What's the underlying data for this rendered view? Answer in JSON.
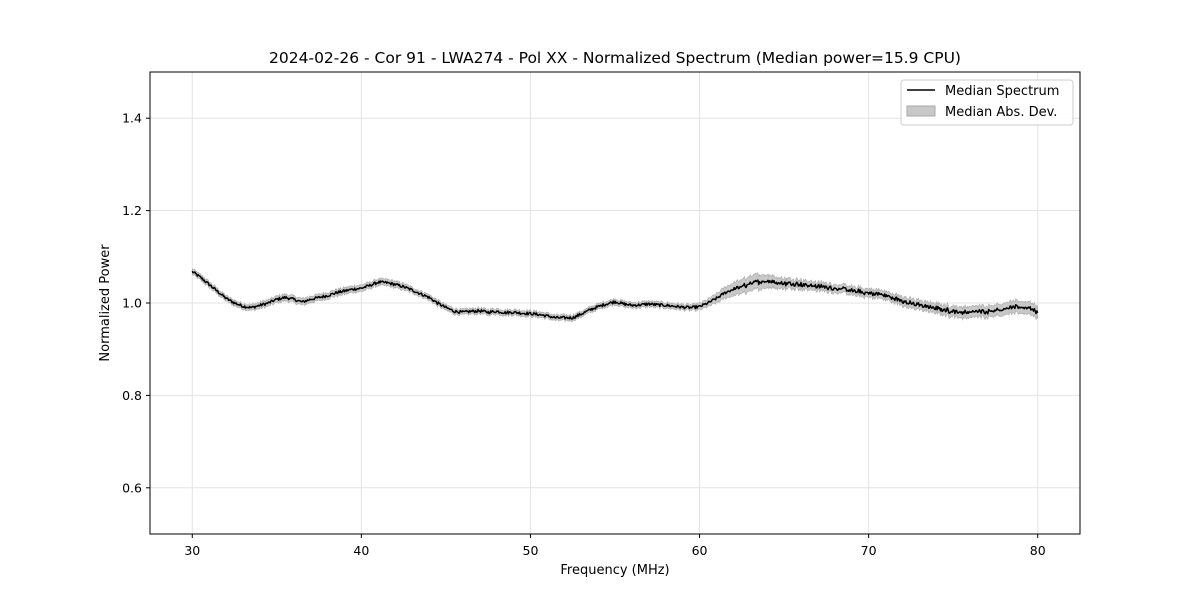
{
  "chart_data": {
    "type": "line",
    "title": "2024-02-26 - Cor 91 - LWA274 - Pol XX - Normalized Spectrum (Median power=15.9 CPU)",
    "xlabel": "Frequency (MHz)",
    "ylabel": "Normalized Power",
    "xlim": [
      27.5,
      82.5
    ],
    "ylim": [
      0.5,
      1.5
    ],
    "xticks": [
      30,
      40,
      50,
      60,
      70,
      80
    ],
    "yticks": [
      0.6,
      0.8,
      1.0,
      1.2,
      1.4
    ],
    "grid": true,
    "legend_position": "top-right",
    "series": [
      {
        "name": "Median Spectrum",
        "color": "#000000",
        "x": [
          30,
          30.5,
          31,
          31.5,
          32,
          32.5,
          33,
          33.5,
          34,
          34.5,
          35,
          35.5,
          36,
          36.5,
          37,
          37.5,
          38,
          38.5,
          39,
          39.5,
          40,
          40.5,
          41,
          41.5,
          42,
          42.5,
          43,
          43.5,
          44,
          44.5,
          45,
          45.5,
          46,
          46.5,
          47,
          47.5,
          48,
          48.5,
          49,
          49.5,
          50,
          50.5,
          51,
          51.5,
          52,
          52.5,
          53,
          53.5,
          54,
          54.5,
          55,
          55.5,
          56,
          56.5,
          57,
          57.5,
          58,
          58.5,
          59,
          59.5,
          60,
          60.5,
          61,
          61.5,
          62,
          62.5,
          63,
          63.5,
          64,
          64.5,
          65,
          65.5,
          66,
          66.5,
          67,
          67.5,
          68,
          68.5,
          69,
          69.5,
          70,
          70.5,
          71,
          71.5,
          72,
          72.5,
          73,
          73.5,
          74,
          74.5,
          75,
          75.5,
          76,
          76.5,
          77,
          77.5,
          78,
          78.5,
          79,
          79.5,
          80
        ],
        "values": [
          1.068,
          1.055,
          1.04,
          1.025,
          1.01,
          1.0,
          0.993,
          0.99,
          0.995,
          1.0,
          1.008,
          1.012,
          1.008,
          1.002,
          1.008,
          1.012,
          1.016,
          1.022,
          1.026,
          1.03,
          1.032,
          1.038,
          1.045,
          1.044,
          1.04,
          1.035,
          1.028,
          1.02,
          1.012,
          1.0,
          0.99,
          0.982,
          0.98,
          0.982,
          0.983,
          0.98,
          0.982,
          0.979,
          0.98,
          0.978,
          0.977,
          0.975,
          0.972,
          0.968,
          0.968,
          0.968,
          0.976,
          0.985,
          0.992,
          0.998,
          1.003,
          0.998,
          0.995,
          0.996,
          0.998,
          0.996,
          0.995,
          0.993,
          0.991,
          0.99,
          0.992,
          1.0,
          1.01,
          1.022,
          1.03,
          1.035,
          1.042,
          1.046,
          1.048,
          1.045,
          1.042,
          1.043,
          1.04,
          1.038,
          1.036,
          1.034,
          1.032,
          1.03,
          1.026,
          1.024,
          1.021,
          1.02,
          1.016,
          1.01,
          1.004,
          1.0,
          0.995,
          0.992,
          0.988,
          0.985,
          0.982,
          0.98,
          0.98,
          0.982,
          0.982,
          0.985,
          0.987,
          0.99,
          0.991,
          0.99,
          0.98
        ]
      },
      {
        "name": "Median Abs. Dev.",
        "color": "#c8c8c8",
        "x": [
          30,
          30.5,
          31,
          31.5,
          32,
          32.5,
          33,
          33.5,
          34,
          34.5,
          35,
          35.5,
          36,
          36.5,
          37,
          37.5,
          38,
          38.5,
          39,
          39.5,
          40,
          40.5,
          41,
          41.5,
          42,
          42.5,
          43,
          43.5,
          44,
          44.5,
          45,
          45.5,
          46,
          46.5,
          47,
          47.5,
          48,
          48.5,
          49,
          49.5,
          50,
          50.5,
          51,
          51.5,
          52,
          52.5,
          53,
          53.5,
          54,
          54.5,
          55,
          55.5,
          56,
          56.5,
          57,
          57.5,
          58,
          58.5,
          59,
          59.5,
          60,
          60.5,
          61,
          61.5,
          62,
          62.5,
          63,
          63.5,
          64,
          64.5,
          65,
          65.5,
          66,
          66.5,
          67,
          67.5,
          68,
          68.5,
          69,
          69.5,
          70,
          70.5,
          71,
          71.5,
          72,
          72.5,
          73,
          73.5,
          74,
          74.5,
          75,
          75.5,
          76,
          76.5,
          77,
          77.5,
          78,
          78.5,
          79,
          79.5,
          80
        ],
        "mad": [
          0.006,
          0.006,
          0.006,
          0.006,
          0.006,
          0.006,
          0.006,
          0.006,
          0.007,
          0.007,
          0.007,
          0.007,
          0.007,
          0.007,
          0.007,
          0.007,
          0.007,
          0.007,
          0.007,
          0.007,
          0.007,
          0.007,
          0.007,
          0.007,
          0.007,
          0.007,
          0.006,
          0.006,
          0.006,
          0.006,
          0.006,
          0.006,
          0.006,
          0.006,
          0.006,
          0.006,
          0.006,
          0.006,
          0.006,
          0.006,
          0.006,
          0.006,
          0.006,
          0.006,
          0.006,
          0.006,
          0.006,
          0.006,
          0.006,
          0.006,
          0.006,
          0.006,
          0.006,
          0.006,
          0.006,
          0.006,
          0.006,
          0.006,
          0.006,
          0.006,
          0.007,
          0.008,
          0.01,
          0.012,
          0.014,
          0.015,
          0.016,
          0.016,
          0.014,
          0.012,
          0.011,
          0.01,
          0.01,
          0.009,
          0.009,
          0.009,
          0.009,
          0.009,
          0.009,
          0.009,
          0.009,
          0.009,
          0.009,
          0.009,
          0.01,
          0.01,
          0.01,
          0.01,
          0.01,
          0.011,
          0.011,
          0.012,
          0.012,
          0.012,
          0.012,
          0.012,
          0.013,
          0.013,
          0.013,
          0.013,
          0.013
        ]
      }
    ]
  }
}
